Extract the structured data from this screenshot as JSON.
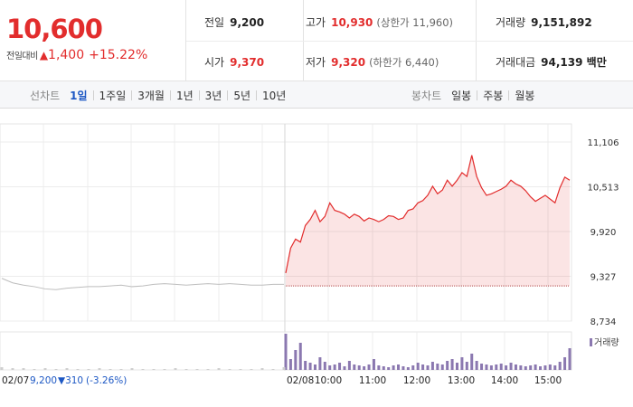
{
  "price": {
    "current": "10,600",
    "change_label": "전일대비",
    "change_arrow": "▲",
    "change_amount": "1,400",
    "change_percent": "+15.22%"
  },
  "stats": {
    "prev_close": {
      "label": "전일",
      "value": "9,200"
    },
    "open": {
      "label": "시가",
      "value": "9,370"
    },
    "high": {
      "label": "고가",
      "value": "10,930",
      "limit": "(상한가 11,960)"
    },
    "low": {
      "label": "저가",
      "value": "9,320",
      "limit": "(하한가 6,440)"
    },
    "volume": {
      "label": "거래량",
      "value": "9,151,892"
    },
    "amount": {
      "label": "거래대금",
      "value": "94,139 백만"
    }
  },
  "tabs": {
    "line_title": "선차트",
    "line": [
      "1일",
      "1주일",
      "3개월",
      "1년",
      "3년",
      "5년",
      "10년"
    ],
    "line_active": 0,
    "candle_title": "봉차트",
    "candle": [
      "일봉",
      "주봉",
      "월봉"
    ]
  },
  "colors": {
    "up": "#e22d2d",
    "active_tab": "#1d58c4",
    "volume": "#8b78b0",
    "prev_line": "#bdbdbd"
  },
  "chart_data": {
    "type": "line",
    "y_ticks": [
      "11,106",
      "10,513",
      "9,920",
      "9,327",
      "8,734"
    ],
    "y_tick_values": [
      11106,
      10513,
      9920,
      9327,
      8734
    ],
    "prev_day": {
      "date": "02/07",
      "close": "9,200",
      "change": "▼310",
      "change_pct": "(-3.26%)"
    },
    "today": {
      "date": "02/08",
      "x_labels": [
        "10:00",
        "11:00",
        "12:00",
        "13:00",
        "14:00",
        "15:00"
      ]
    },
    "volume_legend": "거래량",
    "series_prev_close_ref": 9200,
    "series": [
      {
        "name": "",
        "period": "02/07",
        "values": [
          9300,
          9240,
          9210,
          9190,
          9160,
          9150,
          9170,
          9180,
          9190,
          9190,
          9200,
          9210,
          9190,
          9200,
          9220,
          9230,
          9220,
          9210,
          9220,
          9230,
          9220,
          9230,
          9220,
          9210,
          9210,
          9220,
          9220
        ]
      },
      {
        "name": "",
        "period": "02/08",
        "values": [
          9370,
          9700,
          9820,
          9780,
          10000,
          10080,
          10200,
          10050,
          10120,
          10300,
          10200,
          10180,
          10150,
          10100,
          10150,
          10120,
          10060,
          10100,
          10080,
          10050,
          10080,
          10130,
          10120,
          10080,
          10100,
          10200,
          10220,
          10300,
          10330,
          10400,
          10520,
          10420,
          10470,
          10600,
          10520,
          10600,
          10700,
          10650,
          10930,
          10650,
          10500,
          10400,
          10420,
          10450,
          10480,
          10520,
          10600,
          10550,
          10520,
          10460,
          10380,
          10320,
          10360,
          10400,
          10350,
          10300,
          10500,
          10640,
          10600
        ]
      }
    ],
    "volume_today": [
      40,
      12,
      22,
      30,
      10,
      8,
      6,
      14,
      9,
      5,
      6,
      8,
      4,
      10,
      6,
      5,
      4,
      6,
      12,
      5,
      4,
      3,
      5,
      6,
      4,
      3,
      5,
      8,
      6,
      5,
      9,
      7,
      6,
      10,
      12,
      8,
      14,
      9,
      18,
      10,
      7,
      6,
      5,
      6,
      7,
      5,
      8,
      6,
      5,
      4,
      5,
      6,
      4,
      5,
      6,
      5,
      9,
      14,
      24
    ],
    "volume_prev": [
      3,
      2,
      2,
      1,
      2,
      1,
      2,
      1,
      1,
      2,
      1,
      1,
      2,
      1,
      1,
      1,
      2,
      1,
      1,
      1,
      2,
      1,
      1,
      1,
      2,
      1,
      3
    ]
  }
}
